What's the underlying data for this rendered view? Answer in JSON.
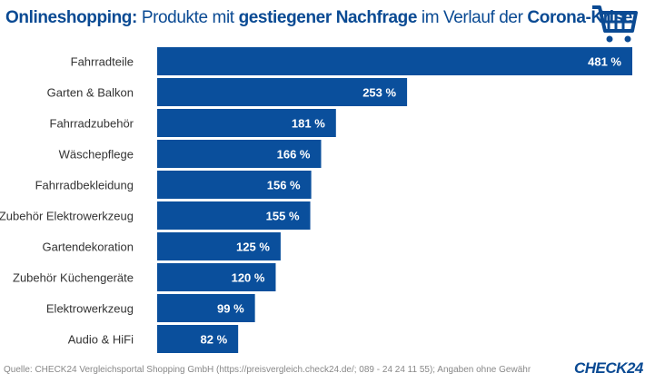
{
  "title_segments": [
    {
      "text": "Onlineshopping:",
      "bold": true
    },
    {
      "text": " Produkte mit ",
      "bold": false
    },
    {
      "text": "gestiegener Nachfrage",
      "bold": true
    },
    {
      "text": " im Verlauf der ",
      "bold": false
    },
    {
      "text": "Corona-Krise",
      "bold": true
    }
  ],
  "icon": "shopping-cart-icon",
  "source": "Quelle: CHECK24 Vergleichsportal Shopping GmbH (https://preisvergleich.check24.de/; 089 - 24 24 11 55); Angaben ohne Gewähr",
  "logo": "CHECK24",
  "colors": {
    "bar": "#0a4f9c",
    "title": "#0a4a93"
  },
  "chart_data": {
    "type": "bar",
    "orientation": "horizontal",
    "categories": [
      "Fahrradteile",
      "Garten & Balkon",
      "Fahrradzubehör",
      "Wäschepflege",
      "Fahrradbekleidung",
      "Zubehör Elektrowerkzeug",
      "Gartendekoration",
      "Zubehör Küchengeräte",
      "Elektrowerkzeug",
      "Audio & HiFi"
    ],
    "values": [
      481,
      253,
      181,
      166,
      156,
      155,
      125,
      120,
      99,
      82
    ],
    "data_labels": [
      "481 %",
      "253 %",
      "181 %",
      "166 %",
      "156 %",
      "155 %",
      "125 %",
      "120 %",
      "99 %",
      "82 %"
    ],
    "xlim": [
      0,
      481
    ],
    "grid": false
  }
}
